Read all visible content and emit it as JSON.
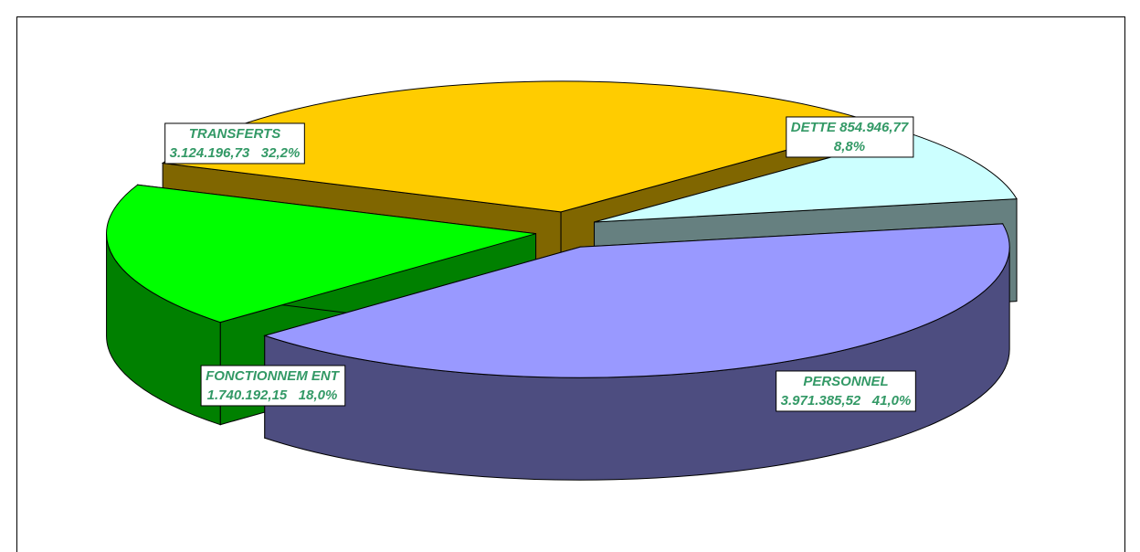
{
  "chart_data": {
    "type": "pie3d",
    "categories": [
      "DETTE",
      "PERSONNEL",
      "FONCTIONNEM ENT",
      "TRANSFERTS"
    ],
    "values": [
      854946.77,
      3971385.52,
      1740192.15,
      3124196.73
    ],
    "value_labels": [
      "854.946,77",
      "3.971.385,52",
      "1.740.192,15",
      "3.124.196,73"
    ],
    "percent_labels": [
      "8,8%",
      "41,0%",
      "18,0%",
      "32,2%"
    ],
    "colors": [
      "#ccffff",
      "#9999ff",
      "#00ff00",
      "#ffcc00"
    ],
    "side_colors": [
      "#668080",
      "#4d4d80",
      "#008000",
      "#806600"
    ]
  }
}
